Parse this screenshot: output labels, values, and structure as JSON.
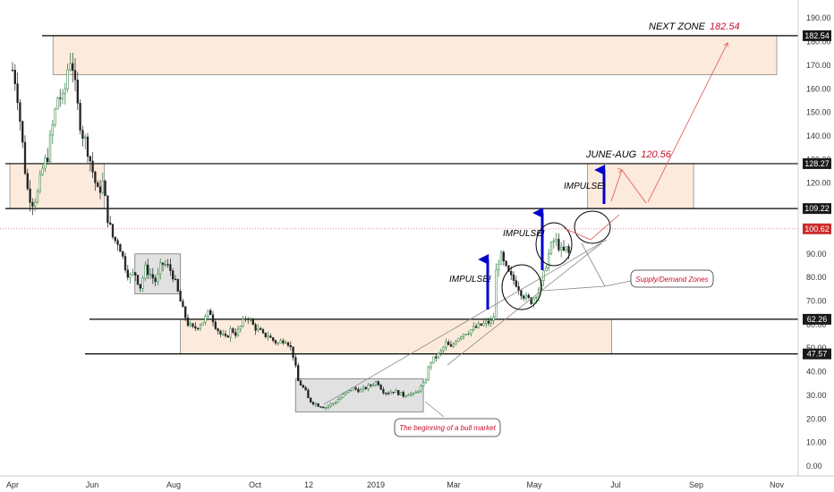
{
  "chart_data": {
    "type": "candlestick",
    "title": "",
    "xlabel": "",
    "ylabel": "",
    "ylim": [
      0,
      195
    ],
    "x_ticks": [
      "Apr",
      "Jun",
      "Aug",
      "Oct",
      "12",
      "2019",
      "Mar",
      "May",
      "Jul",
      "Sep",
      "Nov"
    ],
    "y_ticks": [
      "190.00",
      "180.00",
      "170.00",
      "160.00",
      "150.00",
      "140.00",
      "130.00",
      "120.00",
      "110.00",
      "100.00",
      "90.00",
      "80.00",
      "70.00",
      "60.00",
      "50.00",
      "40.00",
      "30.00",
      "20.00",
      "10.00",
      "0.00"
    ],
    "price_series": {
      "name": "",
      "points": [
        [
          "2018-04-01",
          168
        ],
        [
          "2018-04-04",
          162
        ],
        [
          "2018-04-08",
          140
        ],
        [
          "2018-04-12",
          118
        ],
        [
          "2018-04-16",
          112
        ],
        [
          "2018-04-20",
          115
        ],
        [
          "2018-04-24",
          126
        ],
        [
          "2018-04-28",
          132
        ],
        [
          "2018-05-02",
          145
        ],
        [
          "2018-05-06",
          158
        ],
        [
          "2018-05-10",
          154
        ],
        [
          "2018-05-13",
          168
        ],
        [
          "2018-05-16",
          175
        ],
        [
          "2018-05-20",
          155
        ],
        [
          "2018-05-24",
          142
        ],
        [
          "2018-05-28",
          136
        ],
        [
          "2018-06-01",
          126
        ],
        [
          "2018-06-05",
          116
        ],
        [
          "2018-06-09",
          120
        ],
        [
          "2018-06-13",
          104
        ],
        [
          "2018-06-17",
          96
        ],
        [
          "2018-06-21",
          95
        ],
        [
          "2018-06-25",
          86
        ],
        [
          "2018-06-29",
          80
        ],
        [
          "2018-07-03",
          82
        ],
        [
          "2018-07-07",
          76
        ],
        [
          "2018-07-11",
          84
        ],
        [
          "2018-07-15",
          81
        ],
        [
          "2018-07-19",
          78
        ],
        [
          "2018-07-23",
          86
        ],
        [
          "2018-07-27",
          85
        ],
        [
          "2018-07-31",
          82
        ],
        [
          "2018-08-04",
          74
        ],
        [
          "2018-08-08",
          66
        ],
        [
          "2018-08-12",
          60
        ],
        [
          "2018-08-16",
          58
        ],
        [
          "2018-08-20",
          60
        ],
        [
          "2018-08-24",
          62
        ],
        [
          "2018-08-28",
          66
        ],
        [
          "2018-09-01",
          60
        ],
        [
          "2018-09-05",
          56
        ],
        [
          "2018-09-09",
          54
        ],
        [
          "2018-09-13",
          58
        ],
        [
          "2018-09-17",
          56
        ],
        [
          "2018-09-21",
          60
        ],
        [
          "2018-09-25",
          64
        ],
        [
          "2018-09-29",
          60
        ],
        [
          "2018-10-03",
          58
        ],
        [
          "2018-10-07",
          57
        ],
        [
          "2018-10-11",
          55
        ],
        [
          "2018-10-15",
          56
        ],
        [
          "2018-10-19",
          54
        ],
        [
          "2018-10-23",
          53
        ],
        [
          "2018-10-27",
          52
        ],
        [
          "2018-10-31",
          53
        ],
        [
          "2018-11-04",
          54
        ],
        [
          "2018-11-08",
          52
        ],
        [
          "2018-11-12",
          49
        ],
        [
          "2018-11-15",
          44
        ],
        [
          "2018-11-19",
          36
        ],
        [
          "2018-11-23",
          34
        ],
        [
          "2018-11-27",
          32
        ],
        [
          "2018-12-01",
          28
        ],
        [
          "2018-12-05",
          26
        ],
        [
          "2018-12-09",
          25
        ],
        [
          "2018-12-13",
          27
        ],
        [
          "2018-12-17",
          30
        ],
        [
          "2018-12-21",
          33
        ],
        [
          "2018-12-25",
          32
        ],
        [
          "2018-12-29",
          34
        ],
        [
          "2019-01-02",
          36
        ],
        [
          "2019-01-06",
          32
        ],
        [
          "2019-01-10",
          31
        ],
        [
          "2019-01-14",
          32
        ],
        [
          "2019-01-18",
          31
        ],
        [
          "2019-01-22",
          30
        ],
        [
          "2019-01-26",
          31
        ],
        [
          "2019-01-30",
          30
        ],
        [
          "2019-02-03",
          33
        ],
        [
          "2019-02-07",
          35
        ],
        [
          "2019-02-11",
          44
        ],
        [
          "2019-02-15",
          46
        ],
        [
          "2019-02-19",
          48
        ],
        [
          "2019-02-23",
          52
        ],
        [
          "2019-02-27",
          50
        ],
        [
          "2019-03-03",
          54
        ],
        [
          "2019-03-07",
          56
        ],
        [
          "2019-03-11",
          57
        ],
        [
          "2019-03-15",
          58
        ],
        [
          "2019-03-19",
          59
        ],
        [
          "2019-03-23",
          60
        ],
        [
          "2019-03-27",
          61
        ],
        [
          "2019-03-31",
          61
        ],
        [
          "2019-04-02",
          82
        ],
        [
          "2019-04-05",
          90
        ],
        [
          "2019-04-09",
          84
        ],
        [
          "2019-04-13",
          80
        ],
        [
          "2019-04-17",
          78
        ],
        [
          "2019-04-21",
          74
        ],
        [
          "2019-04-25",
          71
        ],
        [
          "2019-04-29",
          70
        ],
        [
          "2019-05-03",
          74
        ],
        [
          "2019-05-07",
          78
        ],
        [
          "2019-05-10",
          86
        ],
        [
          "2019-05-13",
          92
        ],
        [
          "2019-05-16",
          96
        ],
        [
          "2019-05-19",
          94
        ],
        [
          "2019-05-22",
          90
        ],
        [
          "2019-05-25",
          92
        ],
        [
          "2019-05-28",
          89
        ]
      ]
    },
    "horizontal_levels": [
      {
        "value": 182.54,
        "label": "182.54",
        "style": "black"
      },
      {
        "value": 128.27,
        "label": "128.27",
        "style": "black"
      },
      {
        "value": 109.22,
        "label": "109.22",
        "style": "black"
      },
      {
        "value": 100.62,
        "label": "100.62",
        "style": "red-dotted"
      },
      {
        "value": 62.26,
        "label": "62.26",
        "style": "black"
      },
      {
        "value": 47.57,
        "label": "47.57",
        "style": "black"
      }
    ],
    "zones": [
      {
        "kind": "orange",
        "x0": "2018-05-02",
        "x1": "2019-11-01",
        "y0": 166,
        "y1": 182.54
      },
      {
        "kind": "orange",
        "x0": "2018-03-30",
        "x1": "2018-06-10",
        "y0": 109.22,
        "y1": 128.27
      },
      {
        "kind": "orange",
        "x0": "2019-06-10",
        "x1": "2019-08-30",
        "y0": 109.22,
        "y1": 128.27
      },
      {
        "kind": "orange",
        "x0": "2018-08-06",
        "x1": "2019-06-28",
        "y0": 47.57,
        "y1": 62.26
      },
      {
        "kind": "gray",
        "x0": "2018-07-03",
        "x1": "2018-08-06",
        "y0": 73,
        "y1": 90
      },
      {
        "kind": "gray",
        "x0": "2018-11-16",
        "x1": "2019-02-06",
        "y0": 23,
        "y1": 37
      }
    ],
    "annotations": {
      "next_zone_label": "NEXT ZONE",
      "next_zone_value": "182.54",
      "june_aug_label": "JUNE-AUG",
      "june_aug_value": "120.56",
      "impulse_1": "IMPULSE!",
      "impulse_2": "IMPULSE!",
      "impulse_3": "IMPULSE!",
      "supply_demand": "Supply/Demand Zones",
      "bull_market": "The beginning of a bull market"
    },
    "colors": {
      "orange_zone": "#fcebdc",
      "gray_zone": "#d9d9d9",
      "up_candle": "#1e7d32",
      "down_candle": "#222222",
      "impulse_arrow": "#0000cc",
      "value_text": "#c8102e",
      "current_price_bg": "#cc2b2b"
    },
    "legend": "none",
    "grid": false
  }
}
